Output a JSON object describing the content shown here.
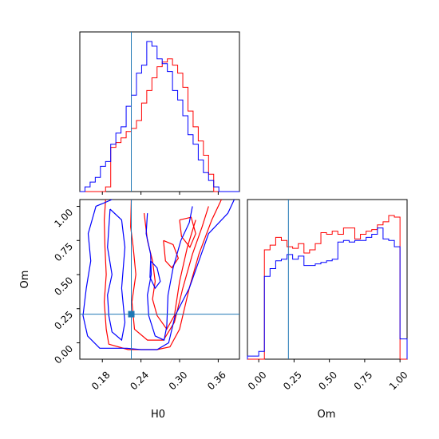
{
  "chart_data": [
    {
      "type": "histogram",
      "panel": "top-left",
      "variable": "H0",
      "bins": [
        0.145,
        0.153,
        0.161,
        0.169,
        0.177,
        0.185,
        0.193,
        0.201,
        0.209,
        0.217,
        0.225,
        0.233,
        0.241,
        0.249,
        0.257,
        0.265,
        0.273,
        0.281,
        0.289,
        0.297,
        0.305,
        0.313,
        0.321,
        0.329,
        0.337,
        0.345,
        0.353,
        0.361,
        0.369,
        0.377,
        0.385,
        0.393
      ],
      "xlim": [
        0.145,
        0.393
      ],
      "truth": 0.225,
      "series": [
        {
          "color": "#ff0000",
          "counts": [
            0,
            0,
            0,
            0,
            0,
            3,
            28,
            31,
            34,
            38,
            40,
            45,
            56,
            64,
            72,
            79,
            82,
            84,
            80,
            75,
            66,
            51,
            41,
            32,
            23,
            11,
            0,
            0,
            0,
            0,
            0
          ]
        },
        {
          "color": "#0000ff",
          "counts": [
            0,
            3,
            6,
            9,
            16,
            19,
            30,
            37,
            41,
            54,
            61,
            75,
            80,
            95,
            92,
            84,
            81,
            76,
            64,
            58,
            48,
            36,
            30,
            20,
            12,
            7,
            3,
            0,
            0,
            0,
            0
          ]
        }
      ]
    },
    {
      "type": "contour",
      "panel": "bottom-left",
      "x_variable": "H0",
      "y_variable": "Om",
      "xlabel": "H0",
      "ylabel": "Om",
      "xlim": [
        0.145,
        0.393
      ],
      "ylim": [
        -0.12,
        1.05
      ],
      "xticks": [
        "0.18",
        "0.24",
        "0.30",
        "0.36"
      ],
      "yticks": [
        "0.00",
        "0.25",
        "0.50",
        "0.75",
        "1.00"
      ],
      "truth": {
        "H0": 0.225,
        "Om": 0.21
      },
      "series": [
        {
          "color": "#ff0000",
          "contours": [
            [
              [
                0.185,
                1.05
              ],
              [
                0.183,
                0.9
              ],
              [
                0.184,
                0.7
              ],
              [
                0.186,
                0.5
              ],
              [
                0.183,
                0.3
              ],
              [
                0.186,
                0.1
              ],
              [
                0.19,
                -0.01
              ],
              [
                0.22,
                -0.05
              ],
              [
                0.265,
                -0.05
              ],
              [
                0.285,
                -0.03
              ],
              [
                0.3,
                0.1
              ],
              [
                0.315,
                0.4
              ],
              [
                0.33,
                0.65
              ],
              [
                0.35,
                0.9
              ],
              [
                0.365,
                1.05
              ]
            ],
            [
              [
                0.225,
                1.05
              ],
              [
                0.224,
                0.85
              ],
              [
                0.228,
                0.7
              ],
              [
                0.232,
                0.5
              ],
              [
                0.226,
                0.3
              ],
              [
                0.23,
                0.1
              ],
              [
                0.25,
                0.02
              ],
              [
                0.275,
                0.02
              ],
              [
                0.292,
                0.15
              ],
              [
                0.305,
                0.4
              ],
              [
                0.32,
                0.65
              ],
              [
                0.335,
                0.85
              ],
              [
                0.345,
                1.0
              ]
            ],
            [
              [
                0.245,
                0.95
              ],
              [
                0.25,
                0.75
              ],
              [
                0.258,
                0.6
              ],
              [
                0.262,
                0.45
              ],
              [
                0.258,
                0.32
              ],
              [
                0.265,
                0.2
              ],
              [
                0.28,
                0.1
              ],
              [
                0.292,
                0.2
              ],
              [
                0.3,
                0.45
              ],
              [
                0.312,
                0.7
              ],
              [
                0.325,
                0.9
              ]
            ],
            [
              [
                0.275,
                0.75
              ],
              [
                0.29,
                0.72
              ],
              [
                0.298,
                0.62
              ],
              [
                0.288,
                0.55
              ],
              [
                0.278,
                0.6
              ],
              [
                0.275,
                0.75
              ]
            ],
            [
              [
                0.3,
                0.9
              ],
              [
                0.318,
                0.92
              ],
              [
                0.325,
                0.8
              ],
              [
                0.316,
                0.7
              ],
              [
                0.303,
                0.78
              ],
              [
                0.3,
                0.9
              ]
            ]
          ]
        },
        {
          "color": "#0000ff",
          "contours": [
            [
              [
                0.195,
                1.05
              ],
              [
                0.17,
                1.0
              ],
              [
                0.158,
                0.8
              ],
              [
                0.162,
                0.6
              ],
              [
                0.155,
                0.4
              ],
              [
                0.15,
                0.2
              ],
              [
                0.157,
                0.05
              ],
              [
                0.176,
                -0.04
              ],
              [
                0.218,
                -0.04
              ],
              [
                0.24,
                -0.05
              ],
              [
                0.265,
                -0.05
              ],
              [
                0.283,
                0.0
              ],
              [
                0.293,
                0.2
              ],
              [
                0.315,
                0.4
              ],
              [
                0.33,
                0.6
              ],
              [
                0.345,
                0.8
              ],
              [
                0.375,
                0.95
              ],
              [
                0.385,
                1.05
              ]
            ],
            [
              [
                0.192,
                0.98
              ],
              [
                0.188,
                0.7
              ],
              [
                0.195,
                0.5
              ],
              [
                0.188,
                0.35
              ],
              [
                0.19,
                0.2
              ],
              [
                0.195,
                0.08
              ],
              [
                0.21,
                0.02
              ],
              [
                0.215,
                0.15
              ],
              [
                0.21,
                0.4
              ],
              [
                0.215,
                0.7
              ],
              [
                0.21,
                0.9
              ],
              [
                0.192,
                0.98
              ]
            ],
            [
              [
                0.25,
                0.95
              ],
              [
                0.248,
                0.8
              ],
              [
                0.255,
                0.65
              ],
              [
                0.256,
                0.5
              ],
              [
                0.25,
                0.35
              ],
              [
                0.252,
                0.2
              ],
              [
                0.262,
                0.05
              ],
              [
                0.276,
                0.02
              ],
              [
                0.28,
                0.12
              ],
              [
                0.282,
                0.35
              ],
              [
                0.29,
                0.55
              ],
              [
                0.302,
                0.75
              ],
              [
                0.315,
                0.88
              ],
              [
                0.32,
                1.0
              ]
            ],
            [
              [
                0.255,
                0.6
              ],
              [
                0.265,
                0.55
              ],
              [
                0.27,
                0.45
              ],
              [
                0.262,
                0.4
              ],
              [
                0.254,
                0.48
              ],
              [
                0.255,
                0.6
              ]
            ]
          ]
        }
      ]
    },
    {
      "type": "histogram",
      "panel": "bottom-right",
      "variable": "Om",
      "xlabel": "Om",
      "xticks": [
        "0.00",
        "0.25",
        "0.50",
        "0.75",
        "1.00"
      ],
      "xlim": [
        -0.08,
        1.05
      ],
      "truth": 0.21,
      "bins": [
        -0.08,
        -0.04,
        0.0,
        0.04,
        0.08,
        0.12,
        0.16,
        0.2,
        0.24,
        0.28,
        0.32,
        0.36,
        0.4,
        0.44,
        0.48,
        0.52,
        0.56,
        0.6,
        0.64,
        0.68,
        0.72,
        0.76,
        0.8,
        0.84,
        0.88,
        0.92,
        0.96,
        1.0,
        1.05
      ],
      "series": [
        {
          "color": "#ff0000",
          "counts": [
            0,
            0,
            0,
            70,
            73,
            78,
            76,
            72,
            71,
            74,
            68,
            70,
            74,
            81,
            80,
            82,
            80,
            84,
            84,
            77,
            80,
            82,
            83,
            86,
            88,
            92,
            91,
            0
          ]
        },
        {
          "color": "#0000ff",
          "counts": [
            2,
            2,
            5,
            53,
            58,
            63,
            64,
            67,
            64,
            66,
            60,
            60,
            61,
            62,
            63,
            64,
            75,
            76,
            75,
            76,
            76,
            78,
            80,
            84,
            77,
            76,
            72,
            13
          ]
        }
      ]
    }
  ]
}
